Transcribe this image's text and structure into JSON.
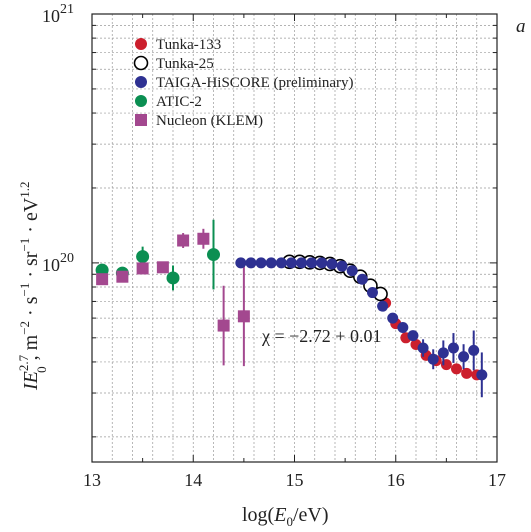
{
  "panel_label": "a",
  "colors": {
    "tunka133": "#cc1f2d",
    "taiga": "#2e3192",
    "atic": "#0b8f52",
    "nucleon": "#a3488f",
    "tunka25_edge": "#000000"
  },
  "chart_data": {
    "type": "scatter",
    "xlabel": "log(E0/eV)",
    "ylabel": "I E0^2.7, m^-2 · s^-1 · sr^-1 · eV^1.2",
    "xlim": [
      13,
      17
    ],
    "ylim_log10": [
      19.2,
      21
    ],
    "yscale": "log",
    "grid": true,
    "legend_position": "top-left",
    "x_ticks": [
      "13",
      "14",
      "15",
      "16",
      "17"
    ],
    "y_ticks": [
      {
        "base": "10",
        "exp": "20",
        "log10": 20
      },
      {
        "base": "10",
        "exp": "21",
        "log10": 21
      }
    ],
    "annotation": "χ = −2.72 + 0.01",
    "series": [
      {
        "name": "Tunka-133",
        "marker": "filled-circle",
        "color": "#cc1f2d",
        "x": [
          15.9,
          16.0,
          16.1,
          16.2,
          16.3,
          16.4,
          16.5,
          16.6,
          16.7,
          16.8
        ],
        "y": [
          6.9e+19,
          5.7e+19,
          5e+19,
          4.7e+19,
          4.25e+19,
          4.05e+19,
          3.9e+19,
          3.75e+19,
          3.6e+19,
          3.55e+19
        ]
      },
      {
        "name": "Tunka-25",
        "marker": "open-circle",
        "color": "#000000",
        "x": [
          14.95,
          15.05,
          15.15,
          15.25,
          15.35,
          15.45,
          15.55,
          15.65,
          15.75,
          15.85
        ],
        "y": [
          1.01e+20,
          1.01e+20,
          1.005e+20,
          1e+20,
          9.9e+19,
          9.7e+19,
          9.3e+19,
          8.8e+19,
          8.1e+19,
          7.5e+19
        ]
      },
      {
        "name": "TAIGA-HiSCORE (preliminary)",
        "marker": "filled-circle",
        "color": "#2e3192",
        "x": [
          14.47,
          14.57,
          14.67,
          14.77,
          14.87,
          14.97,
          15.07,
          15.17,
          15.27,
          15.37,
          15.47,
          15.57,
          15.67,
          15.77,
          15.87,
          15.97,
          16.07,
          16.17,
          16.27,
          16.37,
          16.47,
          16.57,
          16.67,
          16.77,
          16.85
        ],
        "y": [
          1e+20,
          1e+20,
          1e+20,
          1e+20,
          1e+20,
          1e+20,
          1e+20,
          1e+20,
          1e+20,
          9.9e+19,
          9.7e+19,
          9.3e+19,
          8.6e+19,
          7.6e+19,
          6.7e+19,
          6e+19,
          5.5e+19,
          5.1e+19,
          4.55e+19,
          4.1e+19,
          4.35e+19,
          4.55e+19,
          4.2e+19,
          4.45e+19,
          3.55e+19
        ],
        "yerr_log10": [
          0,
          0,
          0,
          0,
          0,
          0,
          0,
          0,
          0,
          0,
          0,
          0,
          0,
          0,
          0,
          0,
          0.02,
          0.02,
          0.035,
          0.04,
          0.05,
          0.06,
          0.05,
          0.08,
          0.09
        ]
      },
      {
        "name": "ATIC-2",
        "marker": "filled-circle",
        "color": "#0b8f52",
        "x": [
          13.1,
          13.3,
          13.5,
          13.8,
          14.2
        ],
        "y": [
          9.35e+19,
          9.1e+19,
          1.06e+20,
          8.7e+19,
          1.08e+20
        ],
        "yerr_log10": [
          0.01,
          0.02,
          0.04,
          0.05,
          0.14
        ]
      },
      {
        "name": "Nucleon (KLEM)",
        "marker": "filled-square",
        "color": "#a3488f",
        "x": [
          13.1,
          13.3,
          13.5,
          13.7,
          13.9,
          14.1,
          14.3,
          14.5
        ],
        "y": [
          8.6e+19,
          8.8e+19,
          9.5e+19,
          9.6e+19,
          1.23e+20,
          1.25e+20,
          5.6e+19,
          6.1e+19
        ],
        "yerr_log10": [
          0.01,
          0.01,
          0.02,
          0.02,
          0.03,
          0.04,
          0.16,
          0.2
        ]
      }
    ]
  }
}
